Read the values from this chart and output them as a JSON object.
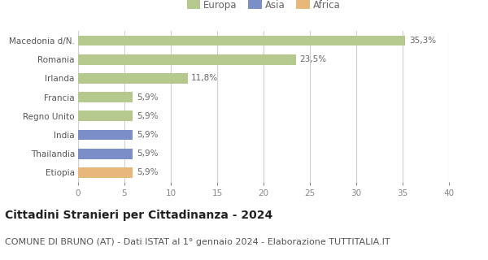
{
  "categories": [
    "Macedonia d/N.",
    "Romania",
    "Irlanda",
    "Francia",
    "Regno Unito",
    "India",
    "Thailandia",
    "Etiopia"
  ],
  "values": [
    35.3,
    23.5,
    11.8,
    5.9,
    5.9,
    5.9,
    5.9,
    5.9
  ],
  "labels": [
    "35,3%",
    "23,5%",
    "11,8%",
    "5,9%",
    "5,9%",
    "5,9%",
    "5,9%",
    "5,9%"
  ],
  "colors": [
    "#b5c98e",
    "#b5c98e",
    "#b5c98e",
    "#b5c98e",
    "#b5c98e",
    "#7b8ec8",
    "#7b8ec8",
    "#e8b87a"
  ],
  "legend": [
    {
      "label": "Europa",
      "color": "#b5c98e"
    },
    {
      "label": "Asia",
      "color": "#7b8ec8"
    },
    {
      "label": "Africa",
      "color": "#e8b87a"
    }
  ],
  "xlim": [
    0,
    40
  ],
  "xticks": [
    0,
    5,
    10,
    15,
    20,
    25,
    30,
    35,
    40
  ],
  "title": "Cittadini Stranieri per Cittadinanza - 2024",
  "subtitle": "COMUNE DI BRUNO (AT) - Dati ISTAT al 1° gennaio 2024 - Elaborazione TUTTITALIA.IT",
  "title_fontsize": 10,
  "subtitle_fontsize": 8,
  "label_fontsize": 7.5,
  "tick_fontsize": 7.5,
  "legend_fontsize": 8.5,
  "bar_height": 0.55,
  "background_color": "#ffffff",
  "grid_color": "#d0d0d0"
}
